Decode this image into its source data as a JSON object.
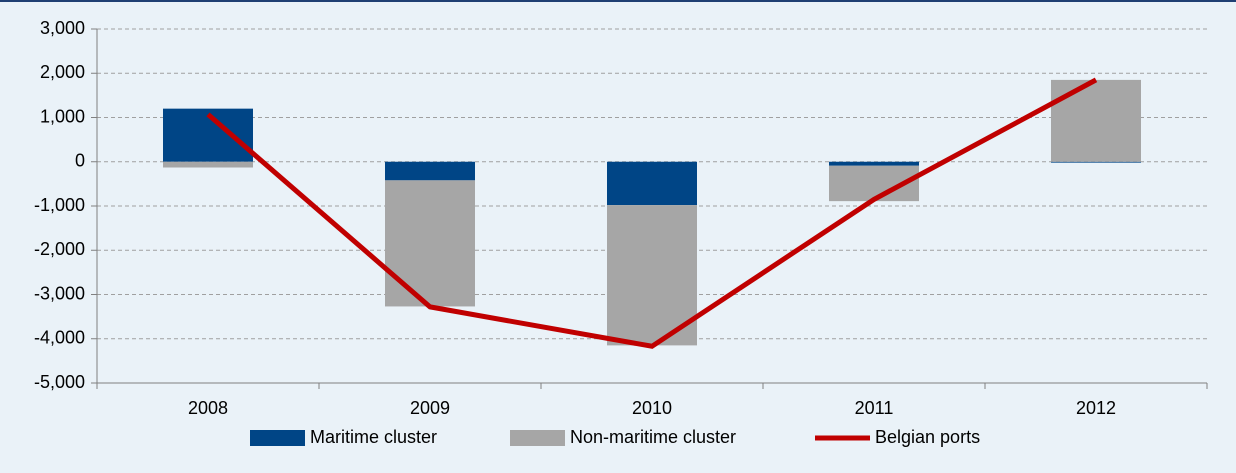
{
  "chart_data": {
    "type": "bar",
    "categories": [
      "2008",
      "2009",
      "2010",
      "2011",
      "2012"
    ],
    "series": [
      {
        "name": "Maritime cluster",
        "color": "#004586",
        "values": [
          1200,
          -420,
          -980,
          -90,
          -20
        ]
      },
      {
        "name": "Non-maritime cluster",
        "color": "#a6a6a6",
        "values": [
          -130,
          -2850,
          -3170,
          -800,
          1850
        ]
      },
      {
        "name": "Belgian ports",
        "color": "#c00000",
        "type": "line",
        "values": [
          1070,
          -3280,
          -4170,
          -850,
          1850
        ]
      }
    ],
    "ylim": [
      -5000,
      3000
    ],
    "yticks": [
      {
        "value": -5000,
        "label": "-5,000"
      },
      {
        "value": -4000,
        "label": "-4,000"
      },
      {
        "value": -3000,
        "label": "-3,000"
      },
      {
        "value": -2000,
        "label": "-2,000"
      },
      {
        "value": -1000,
        "label": "-1,000"
      },
      0,
      {
        "value": 1000,
        "label": "1,000"
      },
      {
        "value": 2000,
        "label": "2,000"
      },
      {
        "value": 3000,
        "label": "3,000"
      }
    ],
    "grid": true,
    "legend": "bottom"
  }
}
